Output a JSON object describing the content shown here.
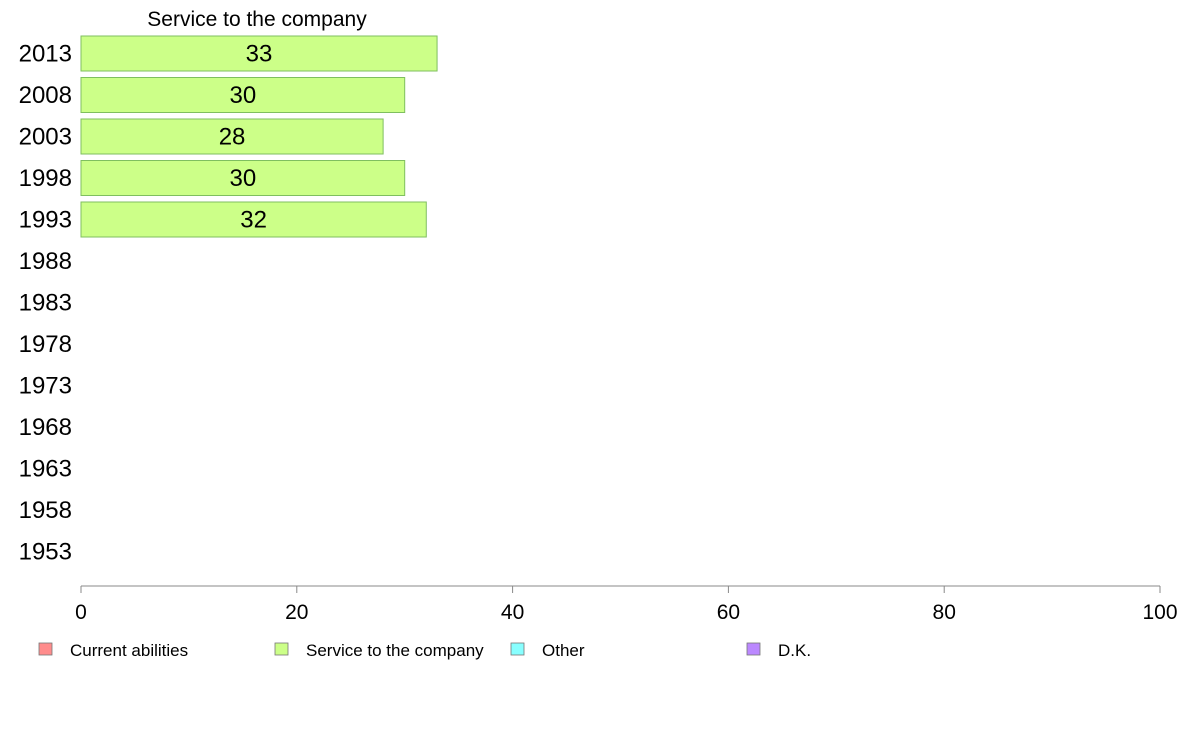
{
  "chart_data": {
    "type": "bar",
    "orientation": "horizontal",
    "title": "Service to the company",
    "categories": [
      "2013",
      "2008",
      "2003",
      "1998",
      "1993",
      "1988",
      "1983",
      "1978",
      "1973",
      "1968",
      "1963",
      "1958",
      "1953"
    ],
    "series": [
      {
        "name": "Service to the company",
        "values": [
          33,
          30,
          28,
          30,
          32,
          null,
          null,
          null,
          null,
          null,
          null,
          null,
          null
        ],
        "labels": [
          "33",
          "30",
          "28",
          "30",
          "32",
          null,
          null,
          null,
          null,
          null,
          null,
          null,
          null
        ]
      }
    ],
    "xlim": [
      0,
      100
    ],
    "xticks": [
      0,
      20,
      40,
      60,
      80,
      100
    ],
    "xtick_labels": [
      "0",
      "20",
      "40",
      "60",
      "80",
      "100"
    ],
    "grid": false,
    "legend_position": "bottom",
    "legend": [
      {
        "label": "Current abilities",
        "color": "#ff8c8c"
      },
      {
        "label": "Service to the company",
        "color": "#ccff88"
      },
      {
        "label": "Other",
        "color": "#88ffff"
      },
      {
        "label": "D.K.",
        "color": "#bb88ff"
      }
    ],
    "colors": {
      "bar_fill": "#ccff88",
      "bar_stroke": "#7fbf5f",
      "axis": "#888888"
    }
  }
}
